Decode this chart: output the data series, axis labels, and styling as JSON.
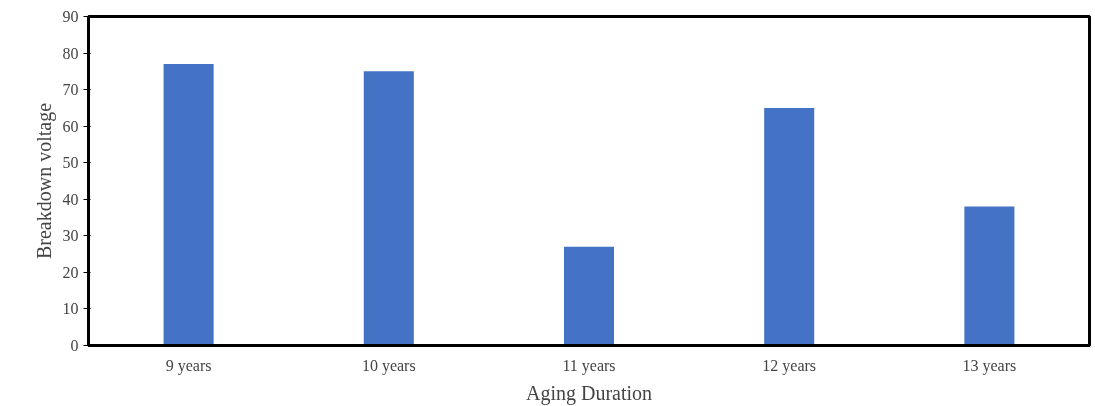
{
  "chart_data": {
    "type": "bar",
    "xlabel": "Aging Duration",
    "ylabel": "Breakdown voltage",
    "categories": [
      "9 years",
      "10 years",
      "11 years",
      "12 years",
      "13 years"
    ],
    "values": [
      77,
      75,
      27,
      65,
      38
    ],
    "color": "#4472c4",
    "ylim": [
      0,
      90
    ],
    "yticks": [
      0,
      10,
      20,
      30,
      40,
      50,
      60,
      70,
      80,
      90
    ],
    "grid": false
  }
}
